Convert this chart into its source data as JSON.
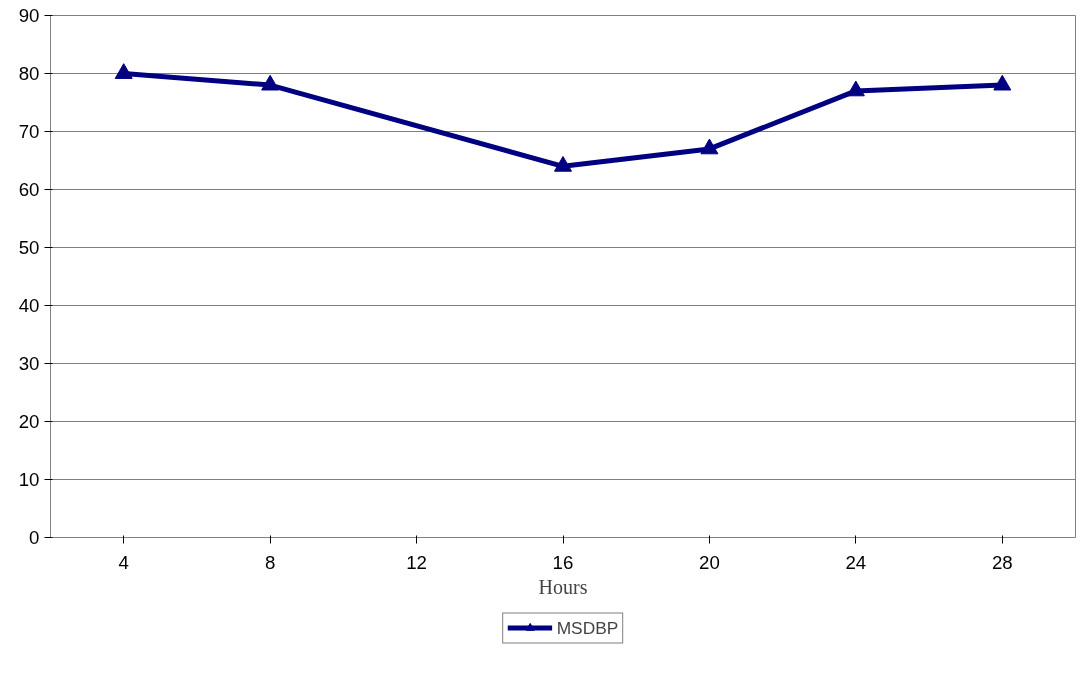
{
  "chart_data": {
    "type": "line",
    "xlabel": "Hours",
    "xlim": [
      2,
      30
    ],
    "xticks": [
      4,
      8,
      12,
      16,
      20,
      24,
      28
    ],
    "ylim": [
      0,
      90
    ],
    "yticks": [
      0,
      10,
      20,
      30,
      40,
      50,
      60,
      70,
      80,
      90
    ],
    "grid": "y",
    "legend": "bottom",
    "marker": "triangle",
    "line_style": "solid",
    "series": [
      {
        "name": "MSDBP",
        "color": "#000080",
        "x": [
          4,
          8,
          16,
          20,
          24,
          28
        ],
        "values": [
          80,
          78,
          64,
          67,
          77,
          78
        ]
      }
    ]
  }
}
